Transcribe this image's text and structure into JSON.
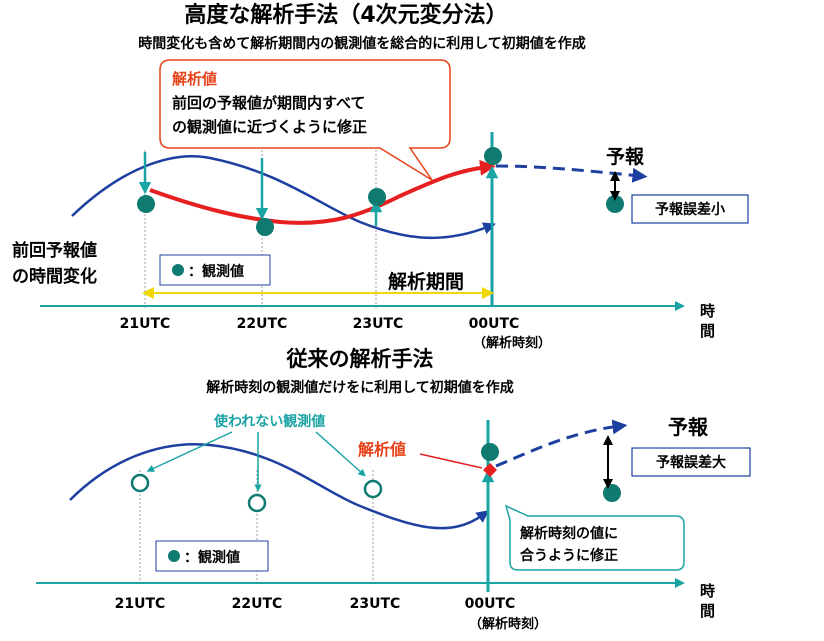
{
  "top": {
    "title": "高度な解析手法（4次元変分法）",
    "subtitle": "時間変化も含めて解析期間内の観測値を総合的に利用して初期値を作成",
    "callout": {
      "title": "解析値",
      "line1": "前回の予報値が期間内すべて",
      "line2": "の観測値に近づくように修正"
    },
    "forecast_label": "予報",
    "error_label": "予報誤差小",
    "prev_forecast_line1": "前回予報値",
    "prev_forecast_line2": "の時間変化",
    "legend_label": "：観測値",
    "period_label": "解析期間",
    "time_ticks": [
      "21UTC",
      "22UTC",
      "23UTC",
      "00UTC"
    ],
    "analysis_time": "（解析時刻）",
    "axis_label_1": "時",
    "axis_label_2": "間"
  },
  "bottom": {
    "title": "従来の解析手法",
    "subtitle": "解析時刻の観測値だけをに利用して初期値を作成",
    "unused_label": "使われない観測値",
    "analysis_label": "解析値",
    "forecast_label": "予報",
    "error_label": "予報誤差大",
    "callout": {
      "line1": "解析時刻の値に",
      "line2": "合うように修正"
    },
    "legend_label": "：観測値",
    "time_ticks": [
      "21UTC",
      "22UTC",
      "23UTC",
      "00UTC"
    ],
    "analysis_time": "（解析時刻）",
    "axis_label_1": "時",
    "axis_label_2": "間"
  },
  "colors": {
    "curve": "#1c3fa0",
    "analysis": "#e62020",
    "teal": "#1aa3a3",
    "obs": "#0f7a70",
    "period": "#f3d800"
  }
}
